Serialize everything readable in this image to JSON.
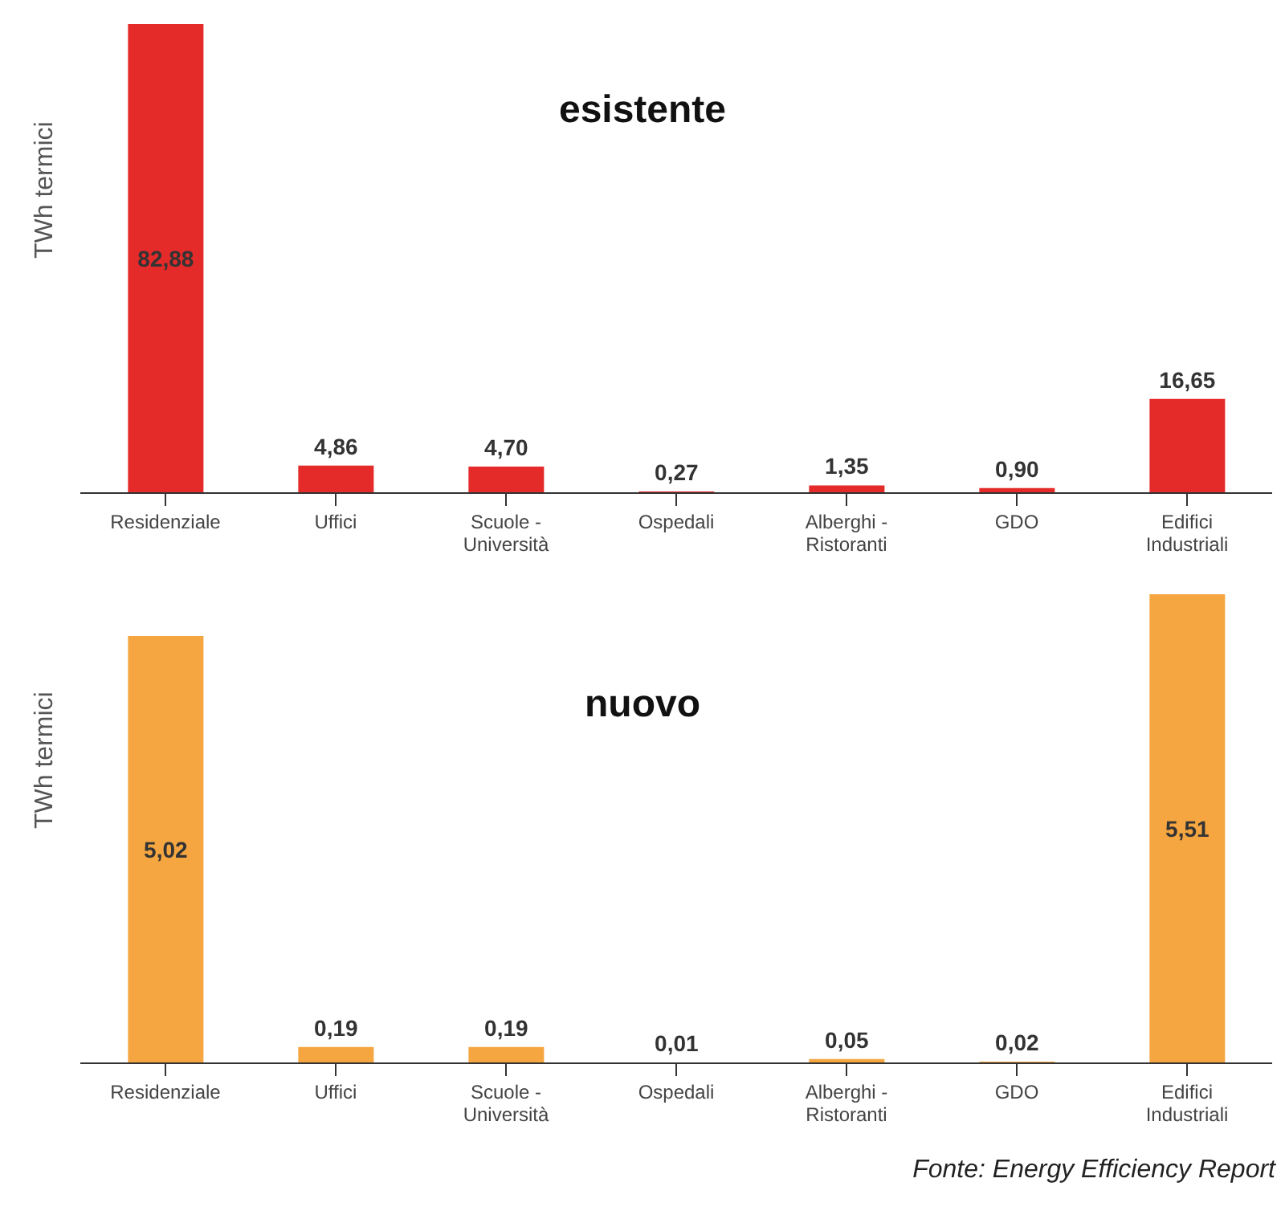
{
  "chart_data": [
    {
      "type": "bar",
      "title": "esistente",
      "ylabel": "TWh termici",
      "categories": [
        "Residenziale",
        "Uffici",
        "Scuole - Università",
        "Ospedali",
        "Alberghi - Ristoranti",
        "GDO",
        "Edifici Industriali"
      ],
      "values": [
        82.88,
        4.86,
        4.7,
        0.27,
        1.35,
        0.9,
        16.65
      ],
      "value_labels": [
        "82,88",
        "4,86",
        "4,70",
        "0,27",
        "1,35",
        "0,90",
        "16,65"
      ],
      "color": "#e52a2a",
      "tick_labels": "x",
      "grid": false,
      "legend": false
    },
    {
      "type": "bar",
      "title": "nuovo",
      "ylabel": "TWh termici",
      "categories": [
        "Residenziale",
        "Uffici",
        "Scuole - Università",
        "Ospedali",
        "Alberghi - Ristoranti",
        "GDO",
        "Edifici Industriali"
      ],
      "values": [
        5.02,
        0.19,
        0.19,
        0.01,
        0.05,
        0.02,
        5.51
      ],
      "value_labels": [
        "5,02",
        "0,19",
        "0,19",
        "0,01",
        "0,05",
        "0,02",
        "5,51"
      ],
      "color": "#f5a640",
      "tick_labels": "x",
      "grid": false,
      "legend": false,
      "annotations": [
        "Fonte: Energy Efficiency Report"
      ]
    }
  ]
}
